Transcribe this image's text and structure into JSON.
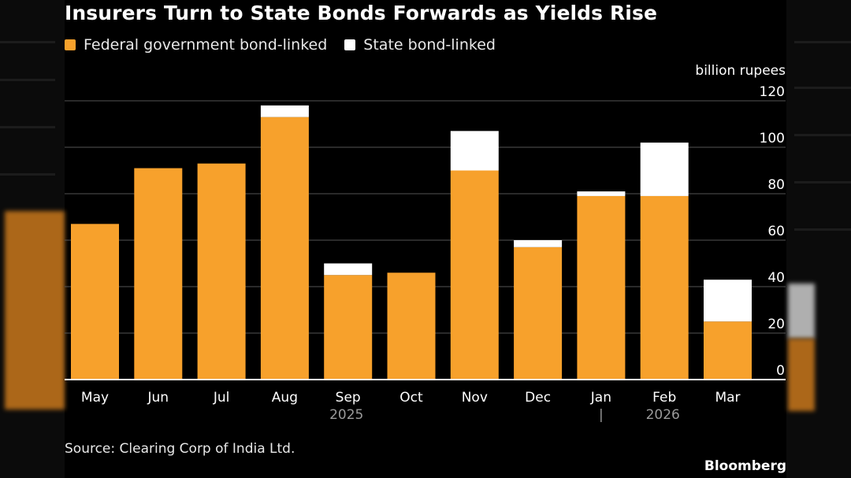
{
  "title": "Insurers Turn to State Bonds Forwards as Yields Rise",
  "legend": [
    {
      "label": "Federal government bond-linked",
      "color": "#f7a12c"
    },
    {
      "label": "State bond-linked",
      "color": "#ffffff"
    }
  ],
  "unit_label": "billion rupees",
  "source": "Source: Clearing Corp of India Ltd.",
  "brand": "Bloomberg",
  "colors": {
    "background": "#000000",
    "federal": "#f7a12c",
    "state": "#ffffff",
    "grid": "#555555",
    "axis_text": "#ffffff",
    "year_text": "#9a9a9a"
  },
  "chart_data": {
    "type": "bar",
    "stacked": true,
    "title": "Insurers Turn to State Bonds Forwards as Yields Rise",
    "ylabel": "billion rupees",
    "xlabel": "",
    "ylim": [
      0,
      120
    ],
    "yticks": [
      0,
      20,
      40,
      60,
      80,
      100,
      120
    ],
    "grid": true,
    "axis_side": "right",
    "legend_position": "top-left",
    "categories": [
      "May",
      "Jun",
      "Jul",
      "Aug",
      "Sep",
      "Oct",
      "Nov",
      "Dec",
      "Jan",
      "Feb",
      "Mar"
    ],
    "year_labels": [
      {
        "label": "2025",
        "category": "Sep"
      },
      {
        "label": "|",
        "category": "Jan"
      },
      {
        "label": "2026",
        "category": "Feb"
      }
    ],
    "series": [
      {
        "name": "Federal government bond-linked",
        "values": [
          67,
          91,
          93,
          113,
          45,
          46,
          90,
          57,
          79,
          79,
          25
        ]
      },
      {
        "name": "State bond-linked",
        "values": [
          0,
          0,
          0,
          5,
          5,
          0,
          17,
          3,
          2,
          23,
          18
        ]
      }
    ]
  }
}
